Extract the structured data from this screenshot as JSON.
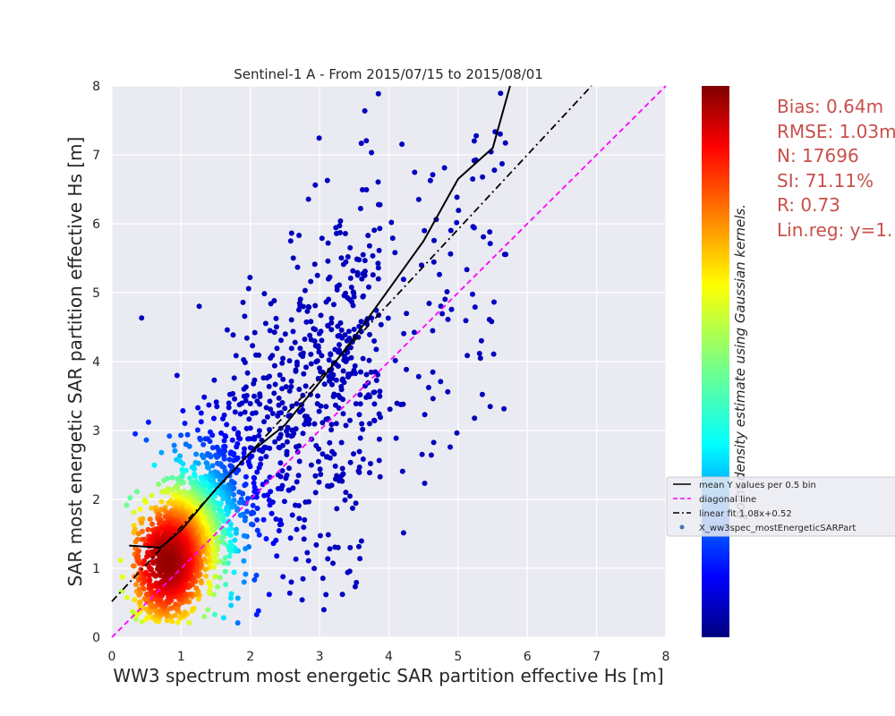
{
  "chart_data": {
    "type": "scatter",
    "title": "Sentinel-1 A - From 2015/07/15 to 2015/08/01",
    "xlabel": "WW3 spectrum most energetic SAR partition effective Hs [m]",
    "ylabel": "SAR most energetic SAR partition effective Hs [m]",
    "xlim": [
      0,
      8
    ],
    "ylim": [
      0,
      8
    ],
    "x_ticks": [
      "0",
      "1",
      "2",
      "3",
      "4",
      "5",
      "6",
      "7",
      "8"
    ],
    "y_ticks": [
      "0",
      "1",
      "2",
      "3",
      "4",
      "5",
      "6",
      "7",
      "8"
    ],
    "grid": true,
    "colorbar_label": "point density estimate using Gaussian kernels.",
    "colormap": "jet",
    "legend_placement": "right, overlapping colorbar",
    "legend": [
      {
        "label": "mean Y values per 0.5 bin",
        "color": "#000000",
        "style": "solid"
      },
      {
        "label": "diagonal line",
        "color": "#ff00ff",
        "style": "dashed"
      },
      {
        "label": "linear fit 1.08x+0.52",
        "color": "#000000",
        "style": "dashdot"
      },
      {
        "label": "X_ww3spec_mostEnergeticSARPart",
        "color": "#4c72b0",
        "style": "dot"
      }
    ],
    "bin_means": {
      "x": [
        0.25,
        0.7,
        1.0,
        1.5,
        2.0,
        2.5,
        3.0,
        3.5,
        4.0,
        4.5,
        5.0,
        5.5,
        5.75
      ],
      "y": [
        1.33,
        1.3,
        1.55,
        2.15,
        2.68,
        3.08,
        3.7,
        4.35,
        5.05,
        5.75,
        6.65,
        7.1,
        8.0
      ]
    },
    "linear_fit": {
      "slope": 1.08,
      "intercept": 0.52
    },
    "diagonal": {
      "slope": 1.0,
      "intercept": 0.0
    },
    "density_peak": {
      "x": 0.8,
      "y": 1.1
    },
    "n_points": 17696,
    "stats": {
      "bias": "Bias: 0.64m",
      "rmse": "RMSE: 1.03m",
      "n": "N: 17696",
      "si": "SI: 71.11%",
      "r": "R: 0.73",
      "linreg": "Lin.reg: y=1."
    },
    "colors": {
      "plot_background": "#eaeaf2",
      "grid": "#ffffff",
      "stats_text": "#c8504b"
    }
  }
}
